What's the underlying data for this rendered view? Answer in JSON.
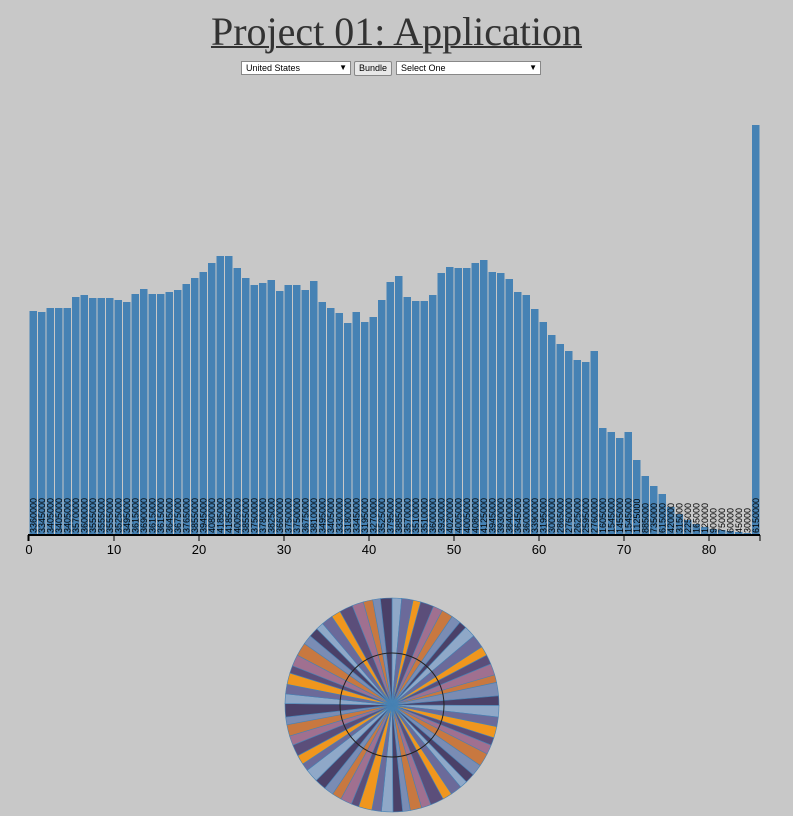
{
  "header": {
    "title": "Project 01: Application"
  },
  "controls": {
    "country": "United States",
    "button": "Bundle",
    "select": "Select One"
  },
  "chart_data": [
    {
      "type": "bar",
      "color": "#4682b4",
      "x": [
        0,
        1,
        2,
        3,
        4,
        5,
        6,
        7,
        8,
        9,
        10,
        11,
        12,
        13,
        14,
        15,
        16,
        17,
        18,
        19,
        20,
        21,
        22,
        23,
        24,
        25,
        26,
        27,
        28,
        29,
        30,
        31,
        32,
        33,
        34,
        35,
        36,
        37,
        38,
        39,
        40,
        41,
        42,
        43,
        44,
        45,
        46,
        47,
        48,
        49,
        50,
        51,
        52,
        53,
        54,
        55,
        56,
        57,
        58,
        59,
        60,
        61,
        62,
        63,
        64,
        65,
        66,
        67,
        68,
        69,
        70,
        71,
        72,
        73,
        74,
        75,
        76,
        77,
        78,
        79,
        80,
        81,
        82,
        83,
        84,
        85
      ],
      "values": [
        3360000,
        3345000,
        3405000,
        3405000,
        3405000,
        3570000,
        3600000,
        3555000,
        3555000,
        3555000,
        3525000,
        3495000,
        3615000,
        3690000,
        3615000,
        3615000,
        3645000,
        3675000,
        3765000,
        3855000,
        3945000,
        4080000,
        4185000,
        4185000,
        4005000,
        3855000,
        3750000,
        3780000,
        3825000,
        3660000,
        3750000,
        3750000,
        3675000,
        3810000,
        3495000,
        3405000,
        3330000,
        3180000,
        3345000,
        3195000,
        3270000,
        3525000,
        3795000,
        3885000,
        3570000,
        3510000,
        3510000,
        3600000,
        3930000,
        4020000,
        4005000,
        4005000,
        4080000,
        4125000,
        3945000,
        3930000,
        3840000,
        3645000,
        3600000,
        3390000,
        3195000,
        3000000,
        2865000,
        2760000,
        2625000,
        2595000,
        2760000,
        1605000,
        1545000,
        1455000,
        1545000,
        1125000,
        885000,
        735000,
        615000,
        420000,
        315000,
        225000,
        165000,
        120000,
        90000,
        75000,
        60000,
        45000,
        30000,
        6150000
      ],
      "xlim": [
        0,
        86
      ],
      "xticks": [
        0,
        10,
        20,
        30,
        40,
        50,
        60,
        70,
        80
      ]
    },
    {
      "type": "pie",
      "colors": [
        "#8fa8c8",
        "#6b6a9a",
        "#f0961e",
        "#5b4e7a",
        "#a07090",
        "#c87840",
        "#7a8cb4",
        "#4a4068"
      ],
      "values": [
        5,
        6,
        4,
        7,
        5,
        6,
        5,
        4,
        6,
        7,
        5,
        5,
        6,
        4,
        7,
        5,
        6,
        5,
        6,
        4,
        5,
        7,
        6,
        5,
        4,
        6,
        5,
        7,
        5,
        6,
        4,
        5,
        6,
        5,
        7,
        4,
        6,
        5,
        5,
        6,
        7,
        4,
        5,
        6,
        5,
        6,
        4,
        7,
        5,
        5,
        6,
        4,
        6,
        7,
        5,
        5,
        4,
        6,
        5,
        7,
        6,
        5,
        4,
        6
      ]
    }
  ]
}
